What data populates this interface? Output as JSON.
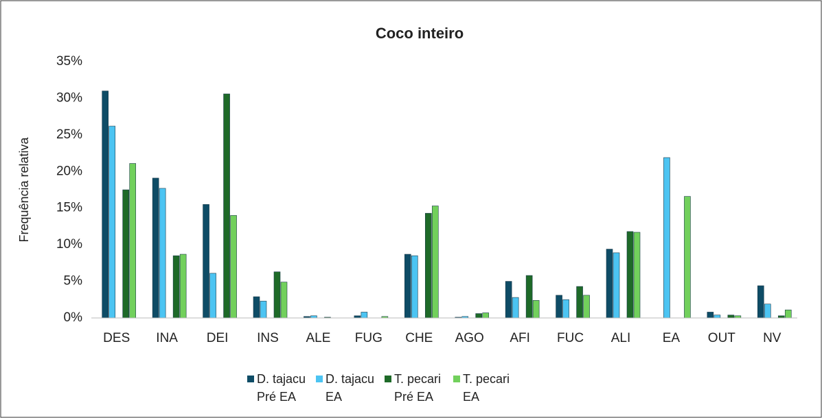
{
  "chart_data": {
    "type": "bar",
    "title": "Coco inteiro",
    "y_label": "Frequência relativa",
    "categories": [
      "DES",
      "INA",
      "DEI",
      "INS",
      "ALE",
      "FUG",
      "CHE",
      "AGO",
      "AFI",
      "FUC",
      "ALI",
      "EA",
      "OUT",
      "NV"
    ],
    "series": [
      {
        "name": "D. tajacu Pré EA",
        "color": "#0e4c66",
        "values": [
          31.0,
          19.1,
          15.5,
          2.9,
          0.2,
          0.3,
          8.7,
          0.1,
          5.0,
          3.1,
          9.4,
          0,
          0.8,
          4.4
        ]
      },
      {
        "name": "D. tajacu EA",
        "color": "#4cc4f2",
        "values": [
          26.2,
          17.7,
          6.1,
          2.3,
          0.3,
          0.8,
          8.5,
          0.2,
          2.8,
          2.5,
          8.9,
          21.9,
          0.4,
          1.9
        ]
      },
      {
        "name": "T. pecari Pré EA",
        "color": "#1e6a28",
        "values": [
          17.5,
          8.5,
          30.6,
          6.3,
          0.1,
          0,
          14.3,
          0.6,
          5.8,
          4.3,
          11.8,
          0,
          0.4,
          0.3
        ]
      },
      {
        "name": "T. pecari EA",
        "color": "#72d05c",
        "values": [
          21.1,
          8.7,
          14.0,
          4.9,
          0,
          0.2,
          15.3,
          0.7,
          2.4,
          3.1,
          11.7,
          16.6,
          0.3,
          1.1
        ]
      }
    ],
    "ylim": [
      0,
      35
    ],
    "yticks": [
      {
        "value": 0,
        "label": "0%"
      },
      {
        "value": 5,
        "label": "5%"
      },
      {
        "value": 10,
        "label": "10%"
      },
      {
        "value": 15,
        "label": "15%"
      },
      {
        "value": 20,
        "label": "20%"
      },
      {
        "value": 25,
        "label": "25%"
      },
      {
        "value": 30,
        "label": "30%"
      },
      {
        "value": 35,
        "label": "35%"
      }
    ],
    "grid": false,
    "legend": "bottom"
  }
}
